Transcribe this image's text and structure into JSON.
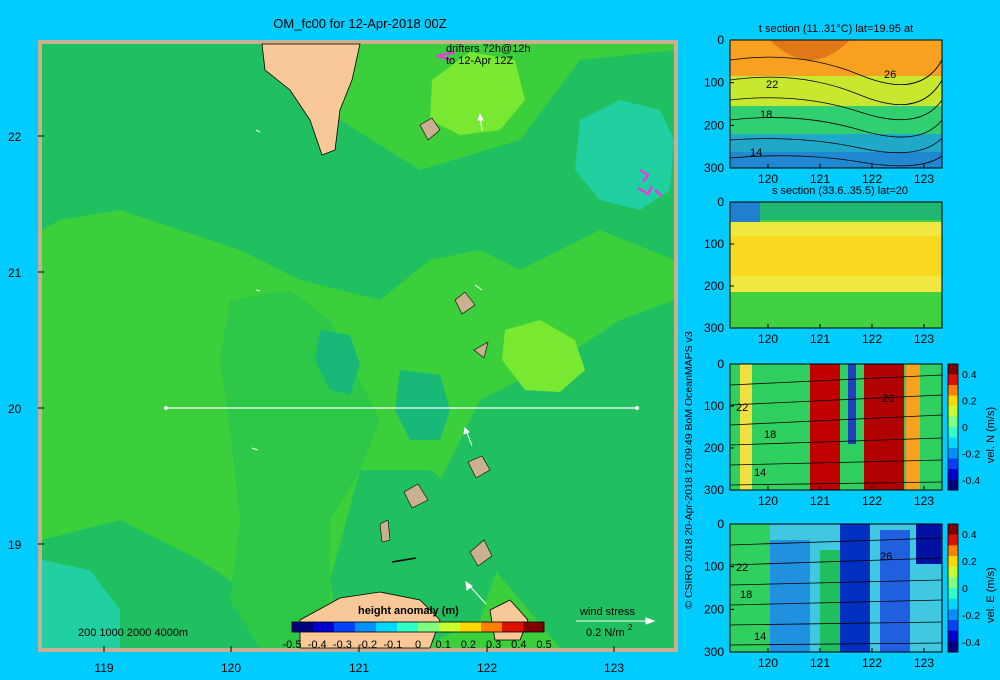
{
  "title": "OM_fc00 for 12-Apr-2018 00Z",
  "map": {
    "lat_ticks": [
      "22",
      "21",
      "20",
      "19"
    ],
    "lon_ticks": [
      "119",
      "120",
      "121",
      "122",
      "123"
    ],
    "drifters_line1": "drifters 72h@12h",
    "drifters_line2": "to 12-Apr 12Z",
    "section_line": {
      "lat": 20,
      "lon_from": 119.5,
      "lon_to": 123.2
    },
    "depth_legend": "200  1000  2000  4000m",
    "wind_stress_label": "wind stress",
    "wind_stress_value": "0.2 N/m",
    "wind_stress_exp": "2",
    "colorbar": {
      "title": "height anomaly (m)",
      "tick_labels": [
        "-0.5",
        "-0.4",
        "-0.3",
        "-0.2",
        "-0.1",
        "0",
        "0.1",
        "0.2",
        "0.3",
        "0.4",
        "0.5"
      ],
      "colors": [
        "#00007f",
        "#0000d0",
        "#0040ff",
        "#0090ff",
        "#00d8ff",
        "#30ffc8",
        "#80ff80",
        "#c8ff30",
        "#ffd800",
        "#ff8000",
        "#e01000",
        "#800000"
      ]
    }
  },
  "credit": "© CSIRO 2018   20-Apr-2018 12:09:49 BoM OceanMAPS v3",
  "panels": [
    {
      "title": "t section (11..31°C) lat=19.95 at",
      "contours": [
        "22",
        "18",
        "14",
        "26"
      ]
    },
    {
      "title": "s section (33.6..35.5) lat=20",
      "contours": []
    },
    {
      "title": "",
      "contours": [
        "22",
        "18",
        "14",
        "26"
      ],
      "cbar_label": "vel. N (m/s)",
      "cbar_ticks": [
        "0.4",
        "0.2",
        "0",
        "-0.2",
        "-0.4"
      ]
    },
    {
      "title": "",
      "contours": [
        "22",
        "18",
        "14",
        "26"
      ],
      "cbar_label": "vel. E (m/s)",
      "cbar_ticks": [
        "0.4",
        "0.2",
        "0",
        "-0.2",
        "-0.4"
      ]
    }
  ],
  "section_axes": {
    "depth_ticks": [
      "0",
      "100",
      "200",
      "300"
    ],
    "lon_ticks": [
      "120",
      "121",
      "122",
      "123"
    ]
  },
  "colors": {
    "background": "#00ccff",
    "land": "#f8c898",
    "shelf": "#c8b090",
    "sea_base": "#40d040"
  }
}
